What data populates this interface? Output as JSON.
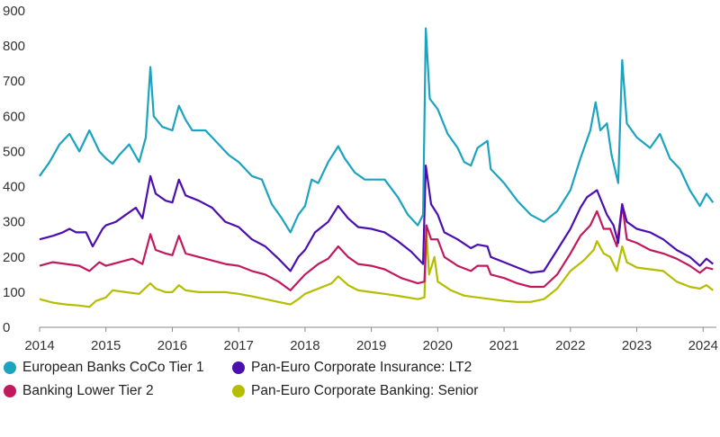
{
  "chart_data": {
    "type": "line",
    "title": "",
    "xlabel": "",
    "ylabel": "",
    "xlim": [
      2014,
      2024.2
    ],
    "ylim": [
      0,
      900
    ],
    "x_ticks": [
      "2014",
      "2015",
      "2016",
      "2017",
      "2018",
      "2019",
      "2020",
      "2021",
      "2022",
      "2023",
      "2024"
    ],
    "y_ticks": [
      "0",
      "100",
      "200",
      "300",
      "400",
      "500",
      "600",
      "700",
      "800",
      "900"
    ],
    "grid": "none",
    "legend_position": "bottom",
    "series": [
      {
        "name": "European Banks CoCo Tier 1",
        "color": "#1ba3bf",
        "points": [
          [
            2014.0,
            430
          ],
          [
            2014.15,
            470
          ],
          [
            2014.3,
            520
          ],
          [
            2014.45,
            550
          ],
          [
            2014.6,
            500
          ],
          [
            2014.75,
            560
          ],
          [
            2014.9,
            500
          ],
          [
            2015.0,
            480
          ],
          [
            2015.1,
            465
          ],
          [
            2015.2,
            490
          ],
          [
            2015.35,
            520
          ],
          [
            2015.5,
            470
          ],
          [
            2015.6,
            540
          ],
          [
            2015.67,
            740
          ],
          [
            2015.72,
            600
          ],
          [
            2015.85,
            570
          ],
          [
            2016.0,
            560
          ],
          [
            2016.1,
            630
          ],
          [
            2016.2,
            590
          ],
          [
            2016.3,
            560
          ],
          [
            2016.5,
            560
          ],
          [
            2016.7,
            520
          ],
          [
            2016.85,
            490
          ],
          [
            2017.0,
            470
          ],
          [
            2017.2,
            430
          ],
          [
            2017.35,
            420
          ],
          [
            2017.5,
            350
          ],
          [
            2017.65,
            310
          ],
          [
            2017.78,
            270
          ],
          [
            2017.9,
            320
          ],
          [
            2018.0,
            345
          ],
          [
            2018.1,
            420
          ],
          [
            2018.2,
            410
          ],
          [
            2018.35,
            470
          ],
          [
            2018.5,
            515
          ],
          [
            2018.6,
            480
          ],
          [
            2018.75,
            440
          ],
          [
            2018.9,
            420
          ],
          [
            2019.0,
            420
          ],
          [
            2019.2,
            420
          ],
          [
            2019.4,
            370
          ],
          [
            2019.55,
            320
          ],
          [
            2019.7,
            290
          ],
          [
            2019.78,
            320
          ],
          [
            2019.82,
            850
          ],
          [
            2019.88,
            650
          ],
          [
            2020.0,
            620
          ],
          [
            2020.15,
            550
          ],
          [
            2020.3,
            510
          ],
          [
            2020.4,
            470
          ],
          [
            2020.5,
            460
          ],
          [
            2020.6,
            510
          ],
          [
            2020.75,
            530
          ],
          [
            2020.8,
            450
          ],
          [
            2021.0,
            410
          ],
          [
            2021.2,
            360
          ],
          [
            2021.4,
            320
          ],
          [
            2021.6,
            300
          ],
          [
            2021.8,
            330
          ],
          [
            2022.0,
            390
          ],
          [
            2022.15,
            480
          ],
          [
            2022.3,
            560
          ],
          [
            2022.38,
            640
          ],
          [
            2022.45,
            560
          ],
          [
            2022.55,
            580
          ],
          [
            2022.62,
            490
          ],
          [
            2022.72,
            410
          ],
          [
            2022.78,
            760
          ],
          [
            2022.85,
            580
          ],
          [
            2023.0,
            540
          ],
          [
            2023.2,
            510
          ],
          [
            2023.35,
            550
          ],
          [
            2023.5,
            480
          ],
          [
            2023.65,
            450
          ],
          [
            2023.8,
            390
          ],
          [
            2023.95,
            345
          ],
          [
            2024.05,
            380
          ],
          [
            2024.15,
            355
          ]
        ]
      },
      {
        "name": "Banking Lower Tier 2",
        "color": "#c2195e",
        "points": [
          [
            2014.0,
            175
          ],
          [
            2014.2,
            185
          ],
          [
            2014.4,
            180
          ],
          [
            2014.6,
            175
          ],
          [
            2014.75,
            160
          ],
          [
            2014.9,
            185
          ],
          [
            2015.0,
            175
          ],
          [
            2015.2,
            185
          ],
          [
            2015.4,
            195
          ],
          [
            2015.55,
            180
          ],
          [
            2015.67,
            265
          ],
          [
            2015.75,
            220
          ],
          [
            2015.9,
            210
          ],
          [
            2016.0,
            205
          ],
          [
            2016.1,
            260
          ],
          [
            2016.2,
            210
          ],
          [
            2016.4,
            200
          ],
          [
            2016.6,
            190
          ],
          [
            2016.8,
            180
          ],
          [
            2017.0,
            175
          ],
          [
            2017.2,
            160
          ],
          [
            2017.4,
            150
          ],
          [
            2017.6,
            130
          ],
          [
            2017.78,
            105
          ],
          [
            2017.9,
            130
          ],
          [
            2018.0,
            150
          ],
          [
            2018.2,
            180
          ],
          [
            2018.35,
            195
          ],
          [
            2018.5,
            230
          ],
          [
            2018.65,
            200
          ],
          [
            2018.8,
            180
          ],
          [
            2019.0,
            175
          ],
          [
            2019.2,
            165
          ],
          [
            2019.45,
            140
          ],
          [
            2019.7,
            125
          ],
          [
            2019.8,
            130
          ],
          [
            2019.83,
            290
          ],
          [
            2019.9,
            250
          ],
          [
            2020.0,
            250
          ],
          [
            2020.1,
            200
          ],
          [
            2020.3,
            175
          ],
          [
            2020.5,
            160
          ],
          [
            2020.6,
            175
          ],
          [
            2020.75,
            175
          ],
          [
            2020.8,
            150
          ],
          [
            2021.0,
            140
          ],
          [
            2021.2,
            125
          ],
          [
            2021.4,
            115
          ],
          [
            2021.6,
            115
          ],
          [
            2021.8,
            150
          ],
          [
            2022.0,
            210
          ],
          [
            2022.15,
            260
          ],
          [
            2022.3,
            290
          ],
          [
            2022.4,
            330
          ],
          [
            2022.5,
            280
          ],
          [
            2022.6,
            280
          ],
          [
            2022.7,
            230
          ],
          [
            2022.78,
            350
          ],
          [
            2022.85,
            250
          ],
          [
            2023.0,
            240
          ],
          [
            2023.2,
            220
          ],
          [
            2023.4,
            210
          ],
          [
            2023.6,
            195
          ],
          [
            2023.8,
            175
          ],
          [
            2023.95,
            155
          ],
          [
            2024.05,
            170
          ],
          [
            2024.15,
            165
          ]
        ]
      },
      {
        "name": "Pan-Euro Corporate Insurance: LT2",
        "color": "#4b0fb0",
        "points": [
          [
            2014.0,
            250
          ],
          [
            2014.2,
            260
          ],
          [
            2014.35,
            270
          ],
          [
            2014.45,
            280
          ],
          [
            2014.55,
            270
          ],
          [
            2014.7,
            270
          ],
          [
            2014.8,
            230
          ],
          [
            2014.95,
            280
          ],
          [
            2015.0,
            290
          ],
          [
            2015.15,
            300
          ],
          [
            2015.3,
            320
          ],
          [
            2015.45,
            340
          ],
          [
            2015.55,
            310
          ],
          [
            2015.67,
            430
          ],
          [
            2015.75,
            380
          ],
          [
            2015.9,
            360
          ],
          [
            2016.0,
            355
          ],
          [
            2016.1,
            420
          ],
          [
            2016.2,
            375
          ],
          [
            2016.4,
            360
          ],
          [
            2016.6,
            340
          ],
          [
            2016.8,
            300
          ],
          [
            2017.0,
            285
          ],
          [
            2017.2,
            250
          ],
          [
            2017.4,
            230
          ],
          [
            2017.6,
            195
          ],
          [
            2017.78,
            160
          ],
          [
            2017.9,
            200
          ],
          [
            2018.0,
            220
          ],
          [
            2018.15,
            270
          ],
          [
            2018.35,
            300
          ],
          [
            2018.5,
            345
          ],
          [
            2018.65,
            310
          ],
          [
            2018.8,
            285
          ],
          [
            2019.0,
            280
          ],
          [
            2019.2,
            270
          ],
          [
            2019.4,
            245
          ],
          [
            2019.6,
            215
          ],
          [
            2019.78,
            180
          ],
          [
            2019.82,
            460
          ],
          [
            2019.9,
            350
          ],
          [
            2020.0,
            320
          ],
          [
            2020.1,
            270
          ],
          [
            2020.3,
            250
          ],
          [
            2020.5,
            225
          ],
          [
            2020.6,
            235
          ],
          [
            2020.75,
            230
          ],
          [
            2020.8,
            200
          ],
          [
            2021.0,
            185
          ],
          [
            2021.2,
            170
          ],
          [
            2021.4,
            155
          ],
          [
            2021.6,
            160
          ],
          [
            2021.8,
            220
          ],
          [
            2022.0,
            280
          ],
          [
            2022.15,
            340
          ],
          [
            2022.25,
            370
          ],
          [
            2022.4,
            390
          ],
          [
            2022.55,
            320
          ],
          [
            2022.65,
            290
          ],
          [
            2022.72,
            240
          ],
          [
            2022.78,
            350
          ],
          [
            2022.85,
            300
          ],
          [
            2023.0,
            280
          ],
          [
            2023.2,
            270
          ],
          [
            2023.4,
            250
          ],
          [
            2023.6,
            220
          ],
          [
            2023.8,
            200
          ],
          [
            2023.95,
            175
          ],
          [
            2024.05,
            195
          ],
          [
            2024.15,
            180
          ]
        ]
      },
      {
        "name": "Pan-Euro Corporate Banking: Senior",
        "color": "#b5bd00",
        "points": [
          [
            2014.0,
            80
          ],
          [
            2014.2,
            70
          ],
          [
            2014.4,
            65
          ],
          [
            2014.6,
            62
          ],
          [
            2014.75,
            58
          ],
          [
            2014.85,
            75
          ],
          [
            2015.0,
            85
          ],
          [
            2015.1,
            105
          ],
          [
            2015.3,
            100
          ],
          [
            2015.5,
            95
          ],
          [
            2015.67,
            125
          ],
          [
            2015.75,
            110
          ],
          [
            2015.9,
            100
          ],
          [
            2016.0,
            100
          ],
          [
            2016.1,
            120
          ],
          [
            2016.2,
            105
          ],
          [
            2016.4,
            100
          ],
          [
            2016.6,
            100
          ],
          [
            2016.8,
            100
          ],
          [
            2017.0,
            95
          ],
          [
            2017.2,
            88
          ],
          [
            2017.4,
            80
          ],
          [
            2017.6,
            72
          ],
          [
            2017.78,
            65
          ],
          [
            2017.9,
            80
          ],
          [
            2018.0,
            95
          ],
          [
            2018.2,
            110
          ],
          [
            2018.4,
            125
          ],
          [
            2018.5,
            145
          ],
          [
            2018.65,
            120
          ],
          [
            2018.8,
            105
          ],
          [
            2019.0,
            100
          ],
          [
            2019.2,
            95
          ],
          [
            2019.45,
            88
          ],
          [
            2019.7,
            80
          ],
          [
            2019.8,
            85
          ],
          [
            2019.83,
            270
          ],
          [
            2019.87,
            150
          ],
          [
            2019.95,
            200
          ],
          [
            2020.0,
            130
          ],
          [
            2020.2,
            105
          ],
          [
            2020.4,
            90
          ],
          [
            2020.6,
            85
          ],
          [
            2020.8,
            80
          ],
          [
            2021.0,
            75
          ],
          [
            2021.2,
            72
          ],
          [
            2021.4,
            72
          ],
          [
            2021.6,
            80
          ],
          [
            2021.8,
            110
          ],
          [
            2022.0,
            160
          ],
          [
            2022.2,
            190
          ],
          [
            2022.35,
            220
          ],
          [
            2022.4,
            245
          ],
          [
            2022.5,
            210
          ],
          [
            2022.6,
            200
          ],
          [
            2022.7,
            160
          ],
          [
            2022.78,
            230
          ],
          [
            2022.85,
            185
          ],
          [
            2023.0,
            170
          ],
          [
            2023.2,
            165
          ],
          [
            2023.4,
            160
          ],
          [
            2023.6,
            130
          ],
          [
            2023.8,
            115
          ],
          [
            2023.95,
            110
          ],
          [
            2024.05,
            120
          ],
          [
            2024.15,
            105
          ]
        ]
      }
    ]
  }
}
